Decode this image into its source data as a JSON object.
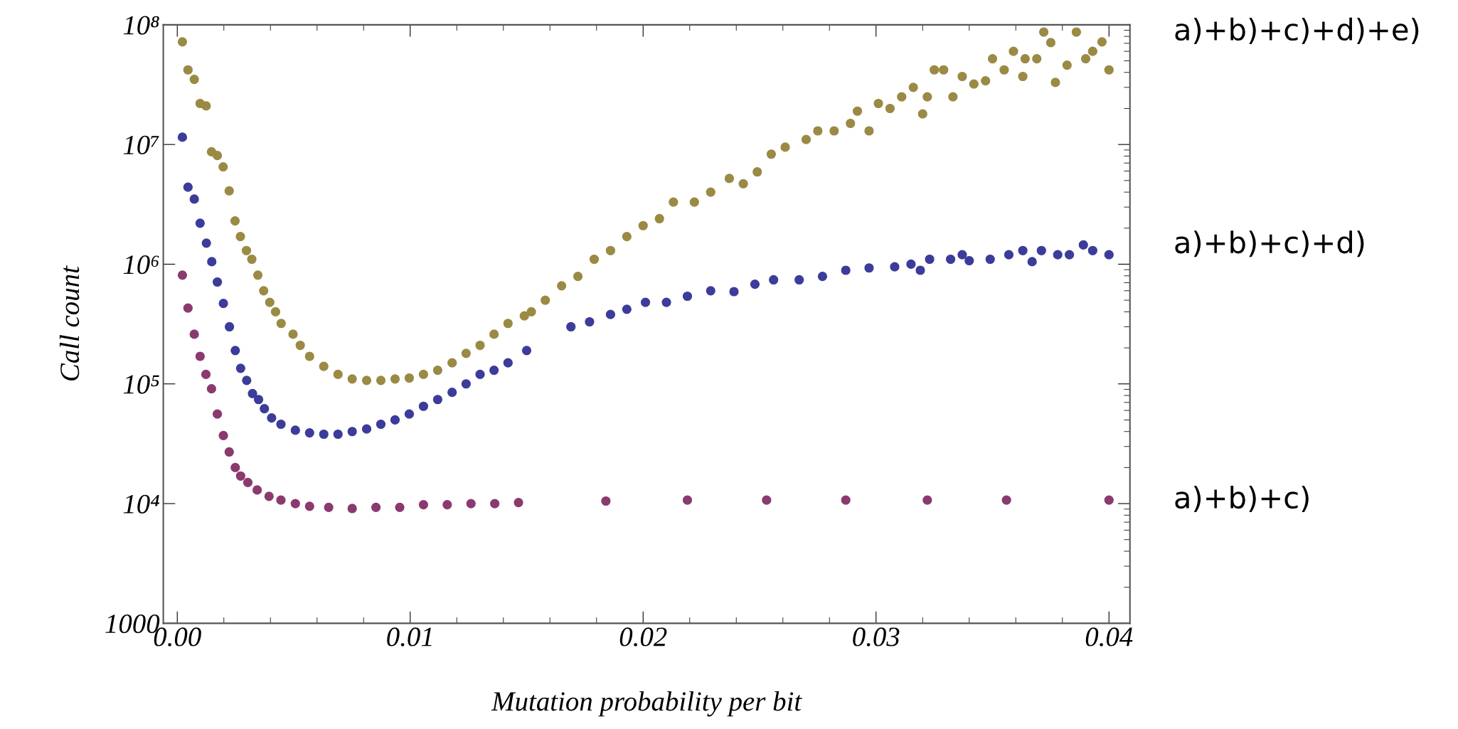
{
  "chart_data": {
    "type": "scatter",
    "xlabel": "Mutation probability per bit",
    "ylabel": "Call count",
    "log": "y",
    "marker": "circle",
    "grid": false,
    "xlim": [
      -0.0006,
      0.0409
    ],
    "xticks": [
      {
        "value": 0,
        "label": "0.00"
      },
      {
        "value": 0.01,
        "label": "0.01"
      },
      {
        "value": 0.02,
        "label": "0.02"
      },
      {
        "value": 0.03,
        "label": "0.03"
      },
      {
        "value": 0.04,
        "label": "0.04"
      }
    ],
    "ylim": [
      1000,
      100000000
    ],
    "yticks": [
      1000,
      {
        "value": 10000,
        "label": "10⁴"
      },
      {
        "value": 100000,
        "label": "10⁵"
      },
      {
        "value": 1000000,
        "label": "10⁶"
      },
      {
        "value": 10000000,
        "label": "10⁷"
      },
      {
        "value": 100000000,
        "label": "10⁸"
      }
    ],
    "series": [
      {
        "name": "a)+b)+c)+d)+e)",
        "color": "#9a8a44",
        "x": [
          0.00022,
          0.00046,
          0.00073,
          0.00098,
          0.00124,
          0.00147,
          0.00172,
          0.00197,
          0.00223,
          0.00248,
          0.00271,
          0.00297,
          0.0032,
          0.00346,
          0.00371,
          0.00397,
          0.00422,
          0.00446,
          0.00497,
          0.00528,
          0.00568,
          0.00629,
          0.0069,
          0.00751,
          0.00813,
          0.00874,
          0.00935,
          0.00996,
          0.01057,
          0.01118,
          0.0118,
          0.0124,
          0.013,
          0.0136,
          0.0142,
          0.0149,
          0.0152,
          0.0158,
          0.0165,
          0.0172,
          0.0179,
          0.0186,
          0.0193,
          0.02,
          0.0207,
          0.0213,
          0.0222,
          0.0229,
          0.0237,
          0.0243,
          0.0249,
          0.0255,
          0.0261,
          0.027,
          0.0275,
          0.0282,
          0.0289,
          0.0292,
          0.0297,
          0.0301,
          0.0306,
          0.0311,
          0.0316,
          0.032,
          0.0322,
          0.0325,
          0.0329,
          0.0333,
          0.0337,
          0.0342,
          0.0347,
          0.035,
          0.0355,
          0.0359,
          0.0363,
          0.0364,
          0.0369,
          0.0372,
          0.0375,
          0.0377,
          0.0382,
          0.0386,
          0.039,
          0.0393,
          0.0397,
          0.04
        ],
        "values": [
          72000000.0,
          42000000.0,
          35000000.0,
          22000000.0,
          21000000.0,
          8700000.0,
          8100000.0,
          6500000.0,
          4100000.0,
          2300000.0,
          1700000.0,
          1300000.0,
          1100000.0,
          810000.0,
          600000.0,
          480000.0,
          400000.0,
          320000.0,
          260000.0,
          210000.0,
          170000.0,
          140000.0,
          120000.0,
          110000.0,
          107000.0,
          107000.0,
          110000.0,
          112000.0,
          120000.0,
          130000.0,
          150000.0,
          180000.0,
          210000.0,
          260000.0,
          320000.0,
          370000.0,
          400000.0,
          500000.0,
          660000.0,
          790000.0,
          1100000.0,
          1300000.0,
          1700000.0,
          2100000.0,
          2400000.0,
          3300000.0,
          3300000.0,
          4000000.0,
          5200000.0,
          4700000.0,
          5900000.0,
          8300000.0,
          9500000.0,
          11000000.0,
          13000000.0,
          13000000.0,
          15000000.0,
          19000000.0,
          13000000.0,
          22000000.0,
          20000000.0,
          25000000.0,
          30000000.0,
          18000000.0,
          25000000.0,
          42000000.0,
          42000000.0,
          25000000.0,
          37000000.0,
          32000000.0,
          34000000.0,
          52000000.0,
          42000000.0,
          60000000.0,
          37000000.0,
          52000000.0,
          52000000.0,
          87000000.0,
          71000000.0,
          33000000.0,
          46000000.0,
          87000000.0,
          52000000.0,
          60000000.0,
          72000000.0,
          42000000.0
        ]
      },
      {
        "name": "a)+b)+c)+d)",
        "color": "#3c3c9a",
        "x": [
          0.00022,
          0.00046,
          0.00073,
          0.00098,
          0.00125,
          0.00148,
          0.00172,
          0.00198,
          0.00224,
          0.00249,
          0.00272,
          0.00298,
          0.00323,
          0.00349,
          0.00374,
          0.00405,
          0.00445,
          0.00507,
          0.00568,
          0.00629,
          0.0069,
          0.00751,
          0.00813,
          0.00874,
          0.00935,
          0.00996,
          0.01057,
          0.01118,
          0.0118,
          0.0124,
          0.013,
          0.0136,
          0.0142,
          0.015,
          0.0169,
          0.0177,
          0.0186,
          0.0193,
          0.0201,
          0.021,
          0.0219,
          0.0229,
          0.0239,
          0.0248,
          0.0256,
          0.0267,
          0.0277,
          0.0287,
          0.0297,
          0.0308,
          0.0315,
          0.0319,
          0.0323,
          0.0332,
          0.0337,
          0.034,
          0.0349,
          0.0357,
          0.0363,
          0.0367,
          0.0371,
          0.0378,
          0.0383,
          0.0389,
          0.0393,
          0.04
        ],
        "values": [
          11500000.0,
          4400000.0,
          3500000.0,
          2200000.0,
          1500000.0,
          1050000.0,
          710000.0,
          470000.0,
          300000.0,
          190000.0,
          135000.0,
          107000.0,
          83000.0,
          74000.0,
          62000.0,
          52000.0,
          46000.0,
          41000.0,
          39000.0,
          38000.0,
          38000.0,
          40000.0,
          42000.0,
          46000.0,
          50000.0,
          56000.0,
          65000.0,
          74000.0,
          85000.0,
          100000.0,
          120000.0,
          130000.0,
          150000.0,
          190000.0,
          300000.0,
          330000.0,
          380000.0,
          420000.0,
          480000.0,
          480000.0,
          540000.0,
          600000.0,
          590000.0,
          680000.0,
          740000.0,
          740000.0,
          790000.0,
          890000.0,
          930000.0,
          950000.0,
          1000000.0,
          890000.0,
          1100000.0,
          1100000.0,
          1200000.0,
          1070000.0,
          1100000.0,
          1200000.0,
          1300000.0,
          1050000.0,
          1300000.0,
          1200000.0,
          1200000.0,
          1450000.0,
          1300000.0,
          1200000.0
        ]
      },
      {
        "name": "a)+b)+c)",
        "color": "#8a3a6e",
        "x": [
          0.00022,
          0.00046,
          0.00073,
          0.00098,
          0.00123,
          0.00147,
          0.00172,
          0.00198,
          0.00223,
          0.00249,
          0.00272,
          0.00303,
          0.00343,
          0.00394,
          0.00445,
          0.00507,
          0.00568,
          0.0065,
          0.00751,
          0.00853,
          0.00955,
          0.01057,
          0.01159,
          0.01261,
          0.01363,
          0.01465,
          0.0184,
          0.0219,
          0.0253,
          0.0287,
          0.0322,
          0.0356,
          0.04
        ],
        "values": [
          810000.0,
          430000.0,
          260000.0,
          170000.0,
          120000.0,
          91000.0,
          56000.0,
          37000.0,
          27000.0,
          20000.0,
          17000.0,
          15000.0,
          13000.0,
          11500.0,
          10700.0,
          10000.0,
          9500,
          9300,
          9100,
          9300,
          9300,
          9800,
          9800,
          10000,
          10000,
          10200,
          10500,
          10700,
          10700,
          10700,
          10700,
          10700,
          10700
        ]
      }
    ]
  }
}
